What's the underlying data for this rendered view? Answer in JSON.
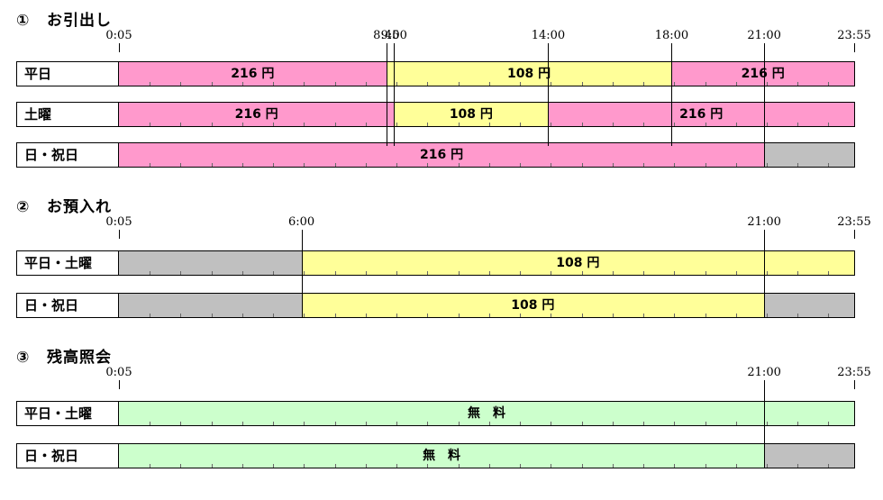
{
  "axis": {
    "start": "0:05",
    "end": "23:55"
  },
  "colors": {
    "fee216": "#ff99cc",
    "fee108": "#ffff99",
    "free": "#ccffcc",
    "closed": "#c0c0c0"
  },
  "sections": [
    {
      "num": "①",
      "title": "お引出し",
      "ticks": [
        "0:05",
        "8:45",
        "9:00",
        "14:00",
        "18:00",
        "21:00",
        "23:55"
      ],
      "rows": [
        {
          "label": "平日",
          "segments": [
            {
              "from": "0:05",
              "to": "8:45",
              "fee": "216 円",
              "kind": "fee216"
            },
            {
              "from": "8:45",
              "to": "18:00",
              "fee": "108 円",
              "kind": "fee108"
            },
            {
              "from": "18:00",
              "to": "23:55",
              "fee": "216 円",
              "kind": "fee216"
            }
          ]
        },
        {
          "label": "土曜",
          "segments": [
            {
              "from": "0:05",
              "to": "9:00",
              "fee": "216 円",
              "kind": "fee216"
            },
            {
              "from": "9:00",
              "to": "14:00",
              "fee": "108 円",
              "kind": "fee108"
            },
            {
              "from": "14:00",
              "to": "23:55",
              "fee": "216 円",
              "kind": "fee216"
            }
          ]
        },
        {
          "label": "日・祝日",
          "segments": [
            {
              "from": "0:05",
              "to": "21:00",
              "fee": "216 円",
              "kind": "fee216"
            },
            {
              "from": "21:00",
              "to": "23:55",
              "fee": "",
              "kind": "closed"
            }
          ]
        }
      ]
    },
    {
      "num": "②",
      "title": "お預入れ",
      "ticks": [
        "0:05",
        "6:00",
        "21:00",
        "23:55"
      ],
      "rows": [
        {
          "label": "平日・土曜",
          "segments": [
            {
              "from": "0:05",
              "to": "6:00",
              "fee": "",
              "kind": "closed"
            },
            {
              "from": "6:00",
              "to": "23:55",
              "fee": "108 円",
              "kind": "fee108"
            }
          ]
        },
        {
          "label": "日・祝日",
          "segments": [
            {
              "from": "0:05",
              "to": "6:00",
              "fee": "",
              "kind": "closed"
            },
            {
              "from": "6:00",
              "to": "21:00",
              "fee": "108 円",
              "kind": "fee108"
            },
            {
              "from": "21:00",
              "to": "23:55",
              "fee": "",
              "kind": "closed"
            }
          ]
        }
      ]
    },
    {
      "num": "③",
      "title": "残高照会",
      "ticks": [
        "0:05",
        "21:00",
        "23:55"
      ],
      "rows": [
        {
          "label": "平日・土曜",
          "segments": [
            {
              "from": "0:05",
              "to": "23:55",
              "fee": "無　料",
              "kind": "free"
            }
          ]
        },
        {
          "label": "日・祝日",
          "segments": [
            {
              "from": "0:05",
              "to": "21:00",
              "fee": "無　料",
              "kind": "free"
            },
            {
              "from": "21:00",
              "to": "23:55",
              "fee": "",
              "kind": "closed"
            }
          ]
        }
      ]
    }
  ]
}
